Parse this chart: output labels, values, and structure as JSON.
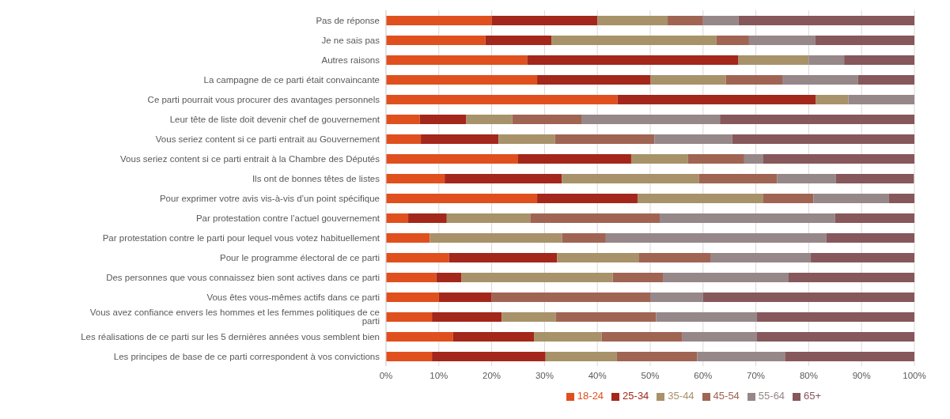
{
  "chart_data": {
    "type": "bar",
    "orientation": "horizontal",
    "stacked": true,
    "categories": [
      "Pas de réponse",
      "Je ne sais pas",
      "Autres raisons",
      "La campagne de ce parti était convaincante",
      "Ce parti pourrait vous procurer des avantages personnels",
      "Leur tête de liste doit devenir chef de gouvernement",
      "Vous seriez content si ce parti entrait au Gouvernement",
      "Vous seriez content si ce parti entrait à la Chambre des Députés",
      "Ils ont de bonnes têtes de listes",
      "Pour exprimer votre avis vis-à-vis d’un point spécifique",
      "Par protestation contre l’actuel gouvernement",
      "Par protestation contre le parti pour lequel vous votez habituellement",
      "Pour le programme électoral de ce parti",
      "Des personnes que vous connaissez bien sont actives dans ce parti",
      "Vous êtes vous-mêmes actifs dans ce parti",
      "Vous avez confiance envers les hommes et les femmes politiques de ce parti",
      "Les réalisations de ce parti sur les 5 dernières années vous semblent bien",
      "Les principes de base de ce parti correspondent à vos convictions"
    ],
    "series": [
      {
        "name": "18-24",
        "color": "#e0501e",
        "values": [
          20,
          18.8,
          26.7,
          28.6,
          43.8,
          6.4,
          6.6,
          25,
          11.1,
          28.6,
          4.2,
          8.3,
          11.9,
          9.5,
          10,
          8.7,
          12.7,
          8.7
        ]
      },
      {
        "name": "25-34",
        "color": "#a3271a",
        "values": [
          20,
          12.5,
          40,
          21.4,
          37.5,
          8.8,
          14.7,
          21.4,
          22.2,
          19,
          7.3,
          0,
          20.5,
          4.8,
          10,
          13.2,
          15.3,
          21.5
        ]
      },
      {
        "name": "35-44",
        "color": "#a8926a",
        "values": [
          13.3,
          31.2,
          13.3,
          14.3,
          6.2,
          8.7,
          10.7,
          10.7,
          25.9,
          23.8,
          15.8,
          25,
          15.4,
          28.6,
          0,
          10.2,
          12.8,
          13.5
        ]
      },
      {
        "name": "45-54",
        "color": "#a06453",
        "values": [
          6.7,
          6.2,
          0,
          10.7,
          0,
          13.2,
          18.8,
          10.7,
          14.8,
          9.5,
          24.5,
          8.3,
          13.7,
          9.5,
          30,
          19,
          15.3,
          15.2
        ]
      },
      {
        "name": "55-64",
        "color": "#968789",
        "values": [
          6.7,
          12.5,
          6.7,
          14.3,
          12.5,
          26.1,
          14.7,
          3.6,
          11.1,
          14.3,
          33.2,
          41.7,
          18.9,
          23.8,
          10,
          19.1,
          14.1,
          16.6
        ]
      },
      {
        "name": "65+",
        "color": "#86575b",
        "values": [
          33.3,
          18.8,
          13.3,
          10.7,
          0,
          36.8,
          34.5,
          28.6,
          14.8,
          4.8,
          15,
          16.7,
          19.6,
          23.8,
          40,
          29.8,
          29.8,
          24.5
        ]
      }
    ],
    "xlim": [
      0,
      100
    ],
    "xticks": [
      {
        "value": 0,
        "label": "0%"
      },
      {
        "value": 10,
        "label": "10%"
      },
      {
        "value": 20,
        "label": "20%"
      },
      {
        "value": 30,
        "label": "30%"
      },
      {
        "value": 40,
        "label": "40%"
      },
      {
        "value": 50,
        "label": "50%"
      },
      {
        "value": 60,
        "label": "60%"
      },
      {
        "value": 70,
        "label": "70%"
      },
      {
        "value": 80,
        "label": "80%"
      },
      {
        "value": 90,
        "label": "90%"
      },
      {
        "value": 100,
        "label": "100%"
      }
    ],
    "grid": "x",
    "legend": "bottom"
  }
}
